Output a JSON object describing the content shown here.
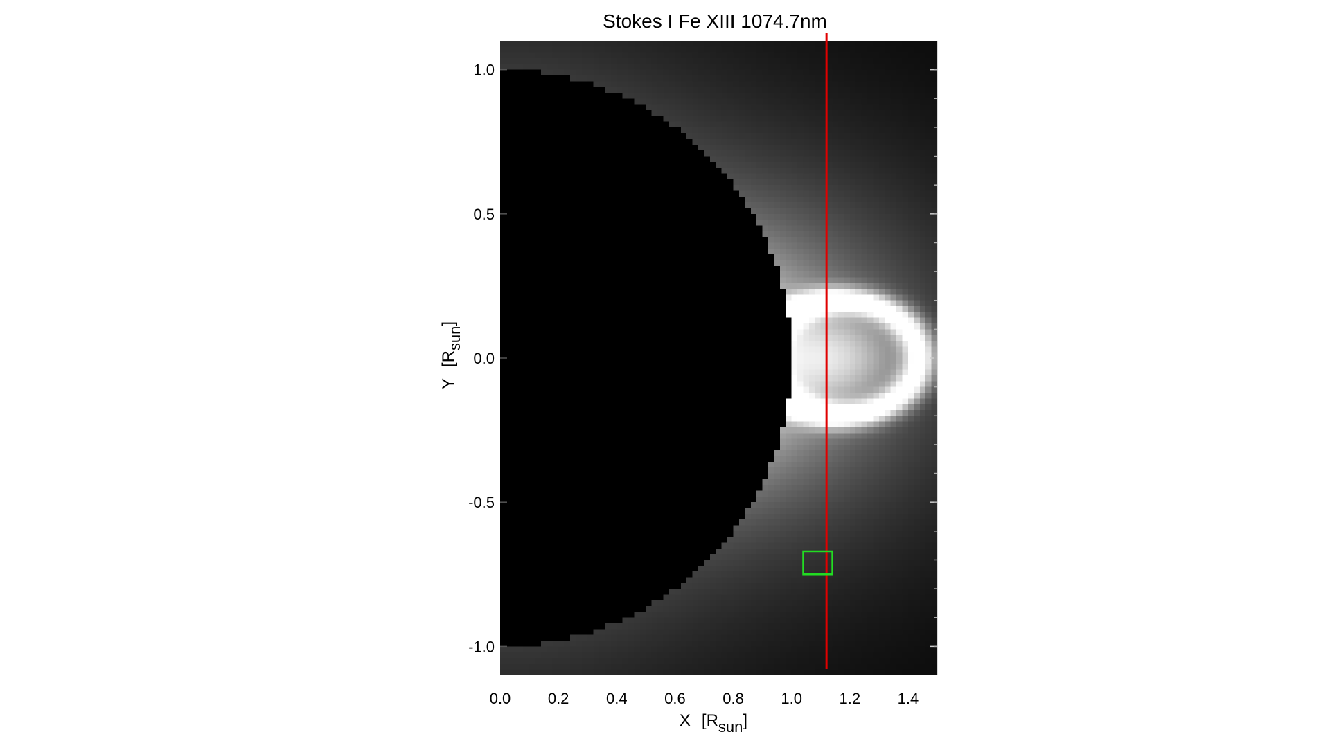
{
  "chart_data": {
    "type": "heatmap",
    "title": "Stokes I Fe XIII 1074.7nm",
    "xlabel": {
      "main": "X",
      "open": "[R",
      "sub": "sun",
      "close": "]"
    },
    "ylabel": {
      "main": "Y",
      "open": "[R",
      "sub": "sun",
      "close": "]"
    },
    "xlim": [
      0.0,
      1.5
    ],
    "ylim": [
      -1.1,
      1.1
    ],
    "x_ticks": [
      0.0,
      0.2,
      0.4,
      0.6,
      0.8,
      1.0,
      1.2,
      1.4
    ],
    "x_tick_labels": [
      "0.0",
      "0.2",
      "0.4",
      "0.6",
      "0.8",
      "1.0",
      "1.2",
      "1.4"
    ],
    "y_ticks": [
      1.0,
      0.5,
      0.0,
      -0.5,
      -1.0
    ],
    "y_tick_labels": [
      "1.0",
      "0.5",
      "0.0",
      "-0.5",
      "-1.0"
    ],
    "colormap": "grayscale",
    "grid": false,
    "solar_disk_radius": 1.0,
    "overlays": {
      "vertical_line": {
        "x": 1.12,
        "color": "#e00000"
      },
      "selection_box": {
        "x": [
          1.04,
          1.14
        ],
        "y": [
          -0.75,
          -0.67
        ],
        "color": "#22dd22"
      }
    }
  }
}
